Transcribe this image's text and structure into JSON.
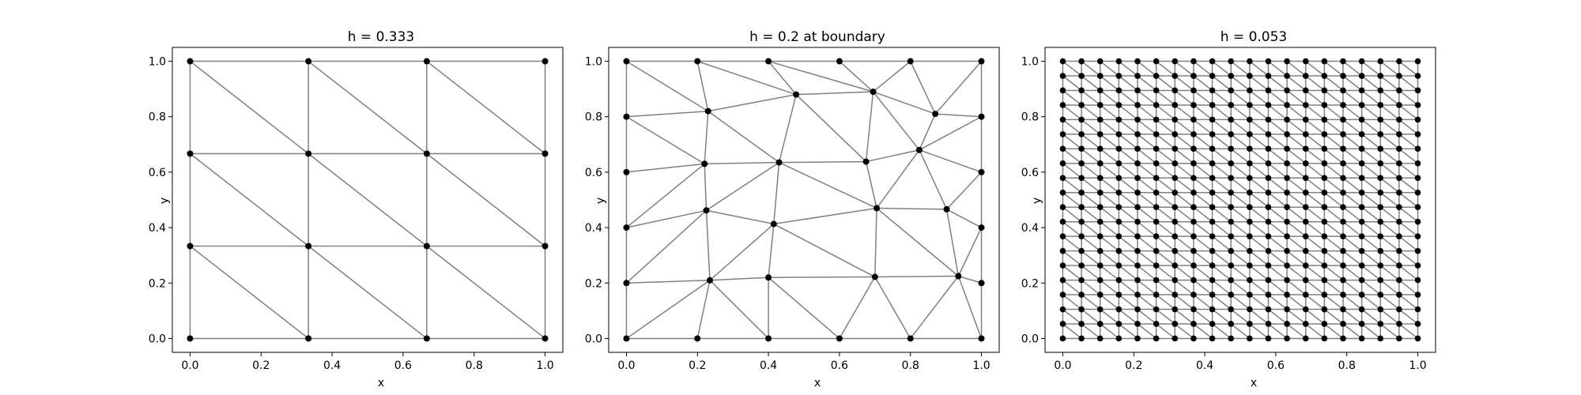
{
  "chart_data": [
    {
      "type": "mesh",
      "title": "h = 0.333",
      "xlabel": "x",
      "ylabel": "y",
      "xlim": [
        -0.05,
        1.05
      ],
      "ylim": [
        -0.05,
        1.05
      ],
      "xticks": [
        "0.0",
        "0.2",
        "0.4",
        "0.6",
        "0.8",
        "1.0"
      ],
      "yticks": [
        "0.0",
        "0.2",
        "0.4",
        "0.6",
        "0.8",
        "1.0"
      ],
      "mesh": {
        "kind": "structured",
        "n": 3,
        "diagonal": "descending"
      },
      "edge_color": "#808080",
      "node_color": "#000000"
    },
    {
      "type": "mesh",
      "title": "h = 0.2 at boundary",
      "xlabel": "x",
      "ylabel": "y",
      "xlim": [
        -0.05,
        1.05
      ],
      "ylim": [
        -0.05,
        1.05
      ],
      "xticks": [
        "0.0",
        "0.2",
        "0.4",
        "0.6",
        "0.8",
        "1.0"
      ],
      "yticks": [
        "0.0",
        "0.2",
        "0.4",
        "0.6",
        "0.8",
        "1.0"
      ],
      "mesh": {
        "kind": "unstructured",
        "nodes": [
          [
            0.0,
            0.0
          ],
          [
            0.2,
            0.0
          ],
          [
            0.4,
            0.0
          ],
          [
            0.6,
            0.0
          ],
          [
            0.8,
            0.0
          ],
          [
            1.0,
            0.0
          ],
          [
            1.0,
            0.2
          ],
          [
            1.0,
            0.4
          ],
          [
            1.0,
            0.6
          ],
          [
            1.0,
            0.8
          ],
          [
            1.0,
            1.0
          ],
          [
            0.8,
            1.0
          ],
          [
            0.6,
            1.0
          ],
          [
            0.4,
            1.0
          ],
          [
            0.2,
            1.0
          ],
          [
            0.0,
            1.0
          ],
          [
            0.0,
            0.8
          ],
          [
            0.0,
            0.6
          ],
          [
            0.0,
            0.4
          ],
          [
            0.0,
            0.2
          ],
          [
            0.23,
            0.82
          ],
          [
            0.478,
            0.88
          ],
          [
            0.695,
            0.89
          ],
          [
            0.87,
            0.81
          ],
          [
            0.22,
            0.63
          ],
          [
            0.43,
            0.635
          ],
          [
            0.675,
            0.638
          ],
          [
            0.825,
            0.68
          ],
          [
            0.225,
            0.462
          ],
          [
            0.415,
            0.413
          ],
          [
            0.705,
            0.47
          ],
          [
            0.902,
            0.466
          ],
          [
            0.235,
            0.21
          ],
          [
            0.4,
            0.22
          ],
          [
            0.7,
            0.222
          ],
          [
            0.935,
            0.225
          ]
        ],
        "edges": [
          [
            0,
            1
          ],
          [
            1,
            2
          ],
          [
            2,
            3
          ],
          [
            3,
            4
          ],
          [
            4,
            5
          ],
          [
            5,
            6
          ],
          [
            6,
            7
          ],
          [
            7,
            8
          ],
          [
            8,
            9
          ],
          [
            9,
            10
          ],
          [
            10,
            11
          ],
          [
            11,
            12
          ],
          [
            12,
            13
          ],
          [
            13,
            14
          ],
          [
            14,
            15
          ],
          [
            15,
            16
          ],
          [
            16,
            17
          ],
          [
            17,
            18
          ],
          [
            18,
            19
          ],
          [
            19,
            0
          ],
          [
            0,
            19
          ],
          [
            19,
            32
          ],
          [
            32,
            1
          ],
          [
            32,
            0
          ],
          [
            1,
            32
          ],
          [
            32,
            2
          ],
          [
            32,
            33
          ],
          [
            33,
            2
          ],
          [
            33,
            3
          ],
          [
            33,
            34
          ],
          [
            34,
            3
          ],
          [
            34,
            4
          ],
          [
            34,
            35
          ],
          [
            35,
            4
          ],
          [
            35,
            5
          ],
          [
            35,
            6
          ],
          [
            6,
            7
          ],
          [
            35,
            7
          ],
          [
            34,
            30
          ],
          [
            30,
            35
          ],
          [
            35,
            31
          ],
          [
            31,
            7
          ],
          [
            31,
            8
          ],
          [
            30,
            31
          ],
          [
            29,
            30
          ],
          [
            29,
            34
          ],
          [
            29,
            33
          ],
          [
            29,
            32
          ],
          [
            28,
            32
          ],
          [
            28,
            19
          ],
          [
            28,
            18
          ],
          [
            28,
            29
          ],
          [
            25,
            29
          ],
          [
            25,
            28
          ],
          [
            25,
            30
          ],
          [
            25,
            26
          ],
          [
            26,
            30
          ],
          [
            26,
            27
          ],
          [
            27,
            30
          ],
          [
            27,
            31
          ],
          [
            27,
            8
          ],
          [
            27,
            9
          ],
          [
            24,
            28
          ],
          [
            24,
            25
          ],
          [
            24,
            18
          ],
          [
            24,
            17
          ],
          [
            24,
            20
          ],
          [
            24,
            16
          ],
          [
            20,
            16
          ],
          [
            20,
            25
          ],
          [
            20,
            21
          ],
          [
            21,
            25
          ],
          [
            21,
            26
          ],
          [
            21,
            22
          ],
          [
            22,
            26
          ],
          [
            22,
            27
          ],
          [
            22,
            23
          ],
          [
            23,
            27
          ],
          [
            23,
            9
          ],
          [
            20,
            15
          ],
          [
            20,
            14
          ],
          [
            14,
            21
          ],
          [
            21,
            13
          ],
          [
            13,
            22
          ],
          [
            22,
            12
          ],
          [
            22,
            11
          ],
          [
            23,
            11
          ],
          [
            23,
            10
          ],
          [
            18,
            17
          ],
          [
            16,
            17
          ],
          [
            15,
            16
          ]
        ]
      },
      "edge_color": "#808080",
      "node_color": "#000000"
    },
    {
      "type": "mesh",
      "title": "h = 0.053",
      "xlabel": "x",
      "ylabel": "y",
      "xlim": [
        -0.05,
        1.05
      ],
      "ylim": [
        -0.05,
        1.05
      ],
      "xticks": [
        "0.0",
        "0.2",
        "0.4",
        "0.6",
        "0.8",
        "1.0"
      ],
      "yticks": [
        "0.0",
        "0.2",
        "0.4",
        "0.6",
        "0.8",
        "1.0"
      ],
      "mesh": {
        "kind": "structured",
        "n": 19,
        "diagonal": "descending"
      },
      "edge_color": "#808080",
      "node_color": "#000000"
    }
  ]
}
